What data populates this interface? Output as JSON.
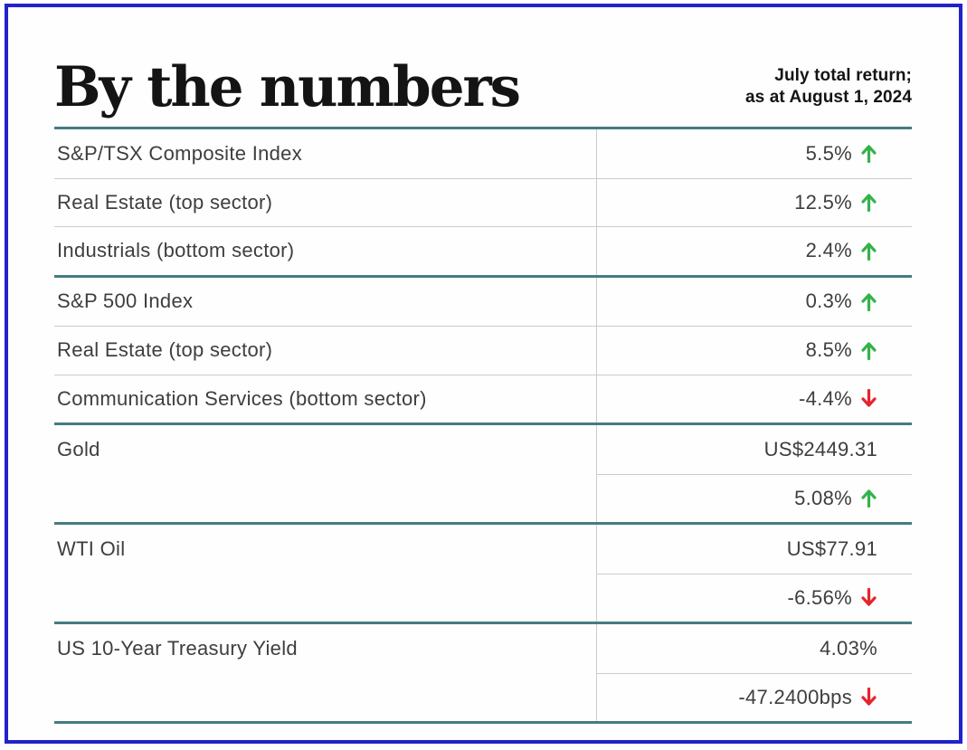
{
  "header": {
    "title": "By the numbers",
    "note_line1": "July total return;",
    "note_line2": "as at August 1, 2024"
  },
  "colors": {
    "frame_blue": "#2121cd",
    "teal_rule": "#447c82",
    "row_rule": "#cbcbcb",
    "text": "#3e3e3e",
    "heading": "#141414",
    "up_green": "#33b24a",
    "down_red": "#e7232b"
  },
  "icons": {
    "up": "up-arrow-icon",
    "down": "down-arrow-icon"
  },
  "table": {
    "groups": [
      {
        "rows": [
          {
            "label": "S&P/TSX Composite Index",
            "value": "5.5%",
            "direction": "up"
          },
          {
            "label": "Real Estate (top sector)",
            "value": "12.5%",
            "direction": "up"
          },
          {
            "label": "Industrials (bottom sector)",
            "value": "2.4%",
            "direction": "up"
          }
        ]
      },
      {
        "rows": [
          {
            "label": "S&P 500 Index",
            "value": "0.3%",
            "direction": "up"
          },
          {
            "label": "Real Estate (top sector)",
            "value": "8.5%",
            "direction": "up"
          },
          {
            "label": "Communication Services (bottom sector)",
            "value": "-4.4%",
            "direction": "down"
          }
        ]
      },
      {
        "rows": [
          {
            "label": "Gold",
            "value": "US$2449.31",
            "direction": "none"
          },
          {
            "label": "",
            "value": "5.08%",
            "direction": "up"
          }
        ]
      },
      {
        "rows": [
          {
            "label": "WTI Oil",
            "value": "US$77.91",
            "direction": "none"
          },
          {
            "label": "",
            "value": "-6.56%",
            "direction": "down"
          }
        ]
      },
      {
        "rows": [
          {
            "label": "US 10-Year Treasury Yield",
            "value": "4.03%",
            "direction": "none"
          },
          {
            "label": "",
            "value": "-47.2400bps",
            "direction": "down"
          }
        ]
      }
    ]
  }
}
